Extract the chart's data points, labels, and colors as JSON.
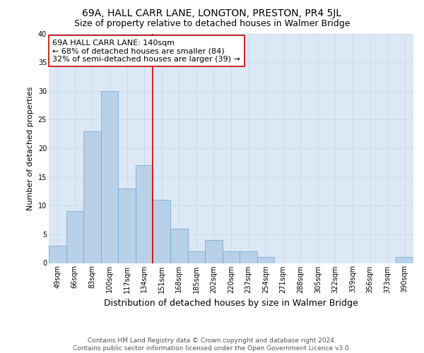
{
  "title": "69A, HALL CARR LANE, LONGTON, PRESTON, PR4 5JL",
  "subtitle": "Size of property relative to detached houses in Walmer Bridge",
  "xlabel": "Distribution of detached houses by size in Walmer Bridge",
  "ylabel": "Number of detached properties",
  "categories": [
    "49sqm",
    "66sqm",
    "83sqm",
    "100sqm",
    "117sqm",
    "134sqm",
    "151sqm",
    "168sqm",
    "185sqm",
    "202sqm",
    "220sqm",
    "237sqm",
    "254sqm",
    "271sqm",
    "288sqm",
    "305sqm",
    "322sqm",
    "339sqm",
    "356sqm",
    "373sqm",
    "390sqm"
  ],
  "values": [
    3,
    9,
    23,
    30,
    13,
    17,
    11,
    6,
    2,
    4,
    2,
    2,
    1,
    0,
    0,
    0,
    0,
    0,
    0,
    0,
    1
  ],
  "bar_color": "#b8d0e8",
  "bar_edge_color": "#7aacd4",
  "vline_color": "#cc0000",
  "vline_x": 5.5,
  "annotation_text": "69A HALL CARR LANE: 140sqm\n← 68% of detached houses are smaller (84)\n32% of semi-detached houses are larger (39) →",
  "annotation_box_facecolor": "#ffffff",
  "annotation_box_edgecolor": "#cc0000",
  "ylim": [
    0,
    40
  ],
  "yticks": [
    0,
    5,
    10,
    15,
    20,
    25,
    30,
    35,
    40
  ],
  "grid_color": "#c8d8ec",
  "plot_bgcolor": "#dce8f5",
  "fig_bgcolor": "#ffffff",
  "footer_line1": "Contains HM Land Registry data © Crown copyright and database right 2024.",
  "footer_line2": "Contains public sector information licensed under the Open Government Licence v3.0.",
  "title_fontsize": 10,
  "subtitle_fontsize": 9,
  "xlabel_fontsize": 9,
  "ylabel_fontsize": 8,
  "tick_fontsize": 7,
  "annotation_fontsize": 8,
  "footer_fontsize": 6.5
}
